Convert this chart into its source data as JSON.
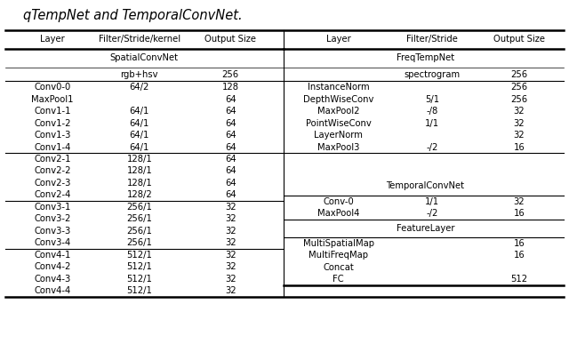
{
  "title": "qTempNet and TemporalConvNet.",
  "fig_width": 6.4,
  "fig_height": 3.96,
  "font_size": 7.2,
  "title_font_size": 10.5,
  "lc": [
    0.01,
    0.175,
    0.315,
    0.495
  ],
  "rc": [
    0.505,
    0.685,
    0.835,
    0.99
  ],
  "left_rows": [
    {
      "type": "header",
      "cols": [
        "Layer",
        "Filter/Stride/kernel",
        "Output Size"
      ]
    },
    {
      "type": "section",
      "cols": [
        "SpatialConvNet",
        "",
        ""
      ]
    },
    {
      "type": "input",
      "cols": [
        "",
        "rgb+hsv",
        "256"
      ]
    },
    {
      "type": "data",
      "cols": [
        "Conv0-0",
        "64/2",
        "128"
      ]
    },
    {
      "type": "data",
      "cols": [
        "MaxPool1",
        "",
        "64"
      ]
    },
    {
      "type": "data",
      "cols": [
        "Conv1-1",
        "64/1",
        "64"
      ]
    },
    {
      "type": "data",
      "cols": [
        "Conv1-2",
        "64/1",
        "64"
      ]
    },
    {
      "type": "data",
      "cols": [
        "Conv1-3",
        "64/1",
        "64"
      ]
    },
    {
      "type": "data",
      "cols": [
        "Conv1-4",
        "64/1",
        "64"
      ]
    },
    {
      "type": "sep",
      "cols": []
    },
    {
      "type": "data",
      "cols": [
        "Conv2-1",
        "128/1",
        "64"
      ]
    },
    {
      "type": "data",
      "cols": [
        "Conv2-2",
        "128/1",
        "64"
      ]
    },
    {
      "type": "data",
      "cols": [
        "Conv2-3",
        "128/1",
        "64"
      ]
    },
    {
      "type": "data",
      "cols": [
        "Conv2-4",
        "128/2",
        "64"
      ]
    },
    {
      "type": "sep",
      "cols": []
    },
    {
      "type": "data",
      "cols": [
        "Conv3-1",
        "256/1",
        "32"
      ]
    },
    {
      "type": "data",
      "cols": [
        "Conv3-2",
        "256/1",
        "32"
      ]
    },
    {
      "type": "data",
      "cols": [
        "Conv3-3",
        "256/1",
        "32"
      ]
    },
    {
      "type": "data",
      "cols": [
        "Conv3-4",
        "256/1",
        "32"
      ]
    },
    {
      "type": "sep",
      "cols": []
    },
    {
      "type": "data",
      "cols": [
        "Conv4-1",
        "512/1",
        "32"
      ]
    },
    {
      "type": "data",
      "cols": [
        "Conv4-2",
        "512/1",
        "32"
      ]
    },
    {
      "type": "data",
      "cols": [
        "Conv4-3",
        "512/1",
        "32"
      ]
    },
    {
      "type": "data",
      "cols": [
        "Conv4-4",
        "512/1",
        "32"
      ]
    }
  ],
  "right_rows": [
    {
      "type": "header",
      "cols": [
        "Layer",
        "Filter/Stride",
        "Output Size"
      ]
    },
    {
      "type": "section",
      "cols": [
        "FreqTempNet",
        "",
        ""
      ]
    },
    {
      "type": "input",
      "cols": [
        "",
        "spectrogram",
        "256"
      ]
    },
    {
      "type": "data",
      "cols": [
        "InstanceNorm",
        "",
        "256"
      ]
    },
    {
      "type": "data",
      "cols": [
        "DepthWiseConv",
        "5/1",
        "256"
      ]
    },
    {
      "type": "data",
      "cols": [
        "MaxPool2",
        "-/8",
        "32"
      ]
    },
    {
      "type": "data",
      "cols": [
        "PointWiseConv",
        "1/1",
        "32"
      ]
    },
    {
      "type": "data",
      "cols": [
        "LayerNorm",
        "",
        "32"
      ]
    },
    {
      "type": "data",
      "cols": [
        "MaxPool3",
        "-/2",
        "16"
      ]
    },
    {
      "type": "sep",
      "cols": []
    },
    {
      "type": "blank",
      "cols": []
    },
    {
      "type": "blank",
      "cols": []
    },
    {
      "type": "section",
      "cols": [
        "TemporalConvNet",
        "",
        ""
      ]
    },
    {
      "type": "sep",
      "cols": []
    },
    {
      "type": "data",
      "cols": [
        "Conv-0",
        "1/1",
        "32"
      ]
    },
    {
      "type": "data",
      "cols": [
        "MaxPool4",
        "-/2",
        "16"
      ]
    },
    {
      "type": "sep",
      "cols": []
    },
    {
      "type": "section",
      "cols": [
        "FeatureLayer",
        "",
        ""
      ]
    },
    {
      "type": "sep",
      "cols": []
    },
    {
      "type": "data",
      "cols": [
        "MultiSpatialMap",
        "",
        "16"
      ]
    },
    {
      "type": "data",
      "cols": [
        "MultiFreqMap",
        "",
        "16"
      ]
    },
    {
      "type": "data",
      "cols": [
        "Concat",
        "",
        ""
      ]
    },
    {
      "type": "data",
      "cols": [
        "FC",
        "",
        "512"
      ]
    }
  ]
}
